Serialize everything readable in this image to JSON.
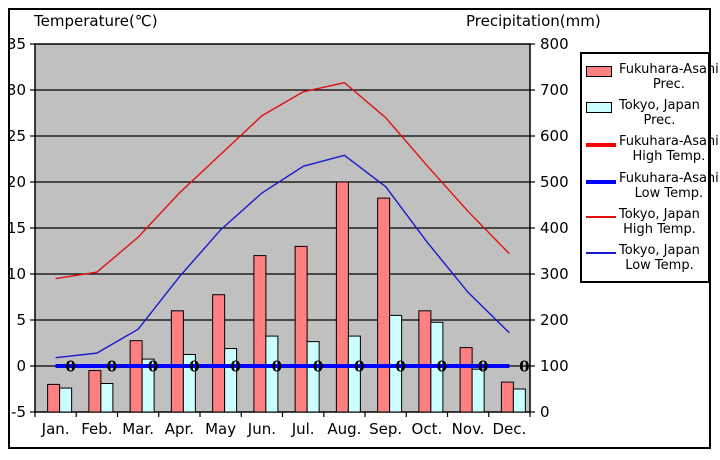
{
  "header": {
    "left_axis_title": "Temperature(℃)",
    "right_axis_title": "Precipitation(mm)"
  },
  "colors": {
    "plot_background": "#C0C0C0",
    "outer_background": "#FFFFFF",
    "border": "#000000",
    "fukuhara_prec_bar": "#FF8080",
    "tokyo_prec_bar": "#CCFFFF",
    "fukuhara_high_line": "#FF0000",
    "fukuhara_low_line": "#0000FF",
    "tokyo_high_line": "#E01010",
    "tokyo_low_line": "#1A1ACD"
  },
  "chart_data": {
    "type": "bar",
    "subtype": "combo bar+line climate chart",
    "categories": [
      "Jan.",
      "Feb.",
      "Mar.",
      "Apr.",
      "May",
      "Jun.",
      "Jul.",
      "Aug.",
      "Sep.",
      "Oct.",
      "Nov.",
      "Dec."
    ],
    "temp_axis": {
      "label": "Temperature(℃)",
      "min": -5,
      "max": 35,
      "ticks": [
        35,
        30,
        25,
        20,
        15,
        10,
        5,
        0,
        -5
      ],
      "grid": true
    },
    "precip_axis": {
      "label": "Precipitation(mm)",
      "min": 0,
      "max": 800,
      "ticks": [
        800,
        700,
        600,
        500,
        400,
        300,
        200,
        100,
        0
      ]
    },
    "legend_position": "right",
    "series": [
      {
        "name": "Fukuhara-Asahi Prec.",
        "type": "bar",
        "axis": "precip_mm",
        "color": "#FF8080",
        "values": [
          60,
          90,
          155,
          220,
          255,
          340,
          360,
          500,
          465,
          220,
          140,
          65
        ]
      },
      {
        "name": "Tokyo, Japan Prec.",
        "type": "bar",
        "axis": "precip_mm",
        "color": "#CCFFFF",
        "values": [
          52,
          62,
          115,
          125,
          138,
          165,
          153,
          165,
          210,
          195,
          93,
          50
        ]
      },
      {
        "name": "Fukuhara-Asahi High Temp.",
        "type": "line",
        "thickness": "thick",
        "axis": "temp_c",
        "color": "#FF0000",
        "values": [
          0,
          0,
          0,
          0,
          0,
          0,
          0,
          0,
          0,
          0,
          0,
          0
        ]
      },
      {
        "name": "Fukuhara-Asahi Low Temp.",
        "type": "line",
        "thickness": "thick",
        "axis": "temp_c",
        "color": "#0000FF",
        "values": [
          0,
          0,
          0,
          0,
          0,
          0,
          0,
          0,
          0,
          0,
          0,
          0
        ],
        "data_labels": [
          "0",
          "0",
          "0",
          "0",
          "0",
          "0",
          "0",
          "0",
          "0",
          "0",
          "0",
          "0"
        ]
      },
      {
        "name": "Tokyo, Japan High Temp.",
        "type": "line",
        "thickness": "thin",
        "axis": "temp_c",
        "color": "#E01010",
        "values": [
          9.5,
          10.2,
          14.0,
          18.8,
          23.0,
          27.2,
          29.8,
          30.8,
          27.0,
          21.8,
          16.8,
          12.2
        ]
      },
      {
        "name": "Tokyo, Japan Low Temp.",
        "type": "line",
        "thickness": "thin",
        "axis": "temp_c",
        "color": "#1A1ACD",
        "values": [
          0.9,
          1.4,
          4.0,
          9.7,
          14.8,
          18.8,
          21.7,
          22.9,
          19.5,
          13.5,
          8.0,
          3.6
        ]
      }
    ],
    "legend": [
      {
        "line1": "Fukuhara-Asahi",
        "line2": "Prec.",
        "swatch": "bar",
        "color": "#FF8080"
      },
      {
        "line1": "Tokyo, Japan",
        "line2": "Prec.",
        "swatch": "bar",
        "color": "#CCFFFF"
      },
      {
        "line1": "Fukuhara-Asahi",
        "line2": "High Temp.",
        "swatch": "thick-line",
        "color": "#FF0000"
      },
      {
        "line1": "Fukuhara-Asahi",
        "line2": "Low Temp.",
        "swatch": "thick-line",
        "color": "#0000FF"
      },
      {
        "line1": "Tokyo, Japan",
        "line2": "High Temp.",
        "swatch": "thin-line",
        "color": "#E01010"
      },
      {
        "line1": "Tokyo, Japan",
        "line2": "Low Temp.",
        "swatch": "thin-line",
        "color": "#1A1ACD"
      }
    ]
  }
}
